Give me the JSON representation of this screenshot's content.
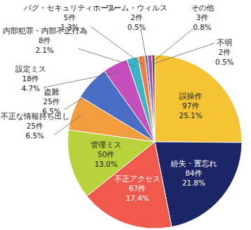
{
  "chart_data": {
    "type": "pie",
    "categories": [
      "誤操作",
      "紛失・置忘れ",
      "不正アクセス",
      "管理ミス",
      "不正な情報持ち出し",
      "盗難",
      "設定ミス",
      "内部犯罪・内部不正行為",
      "バグ・セキュリティホール",
      "ワーム・ウィルス",
      "その他",
      "不明"
    ],
    "values": [
      97,
      84,
      67,
      50,
      25,
      25,
      18,
      8,
      5,
      2,
      3,
      2
    ],
    "value_labels": [
      "97件",
      "84件",
      "67件",
      "50件",
      "25件",
      "25件",
      "18件",
      "8件",
      "5件",
      "2件",
      "3件",
      "2件"
    ],
    "percents": [
      25.1,
      21.8,
      17.4,
      13.0,
      6.5,
      6.5,
      4.7,
      2.1,
      1.3,
      0.5,
      0.8,
      0.5
    ],
    "percent_labels": [
      "25.1%",
      "21.8%",
      "17.4%",
      "13.0%",
      "6.5%",
      "6.5%",
      "4.7%",
      "2.1%",
      "1.3%",
      "0.5%",
      "0.8%",
      "0.5%"
    ],
    "colors": [
      "#f4c233",
      "#1c2565",
      "#ef5a4c",
      "#b8d23c",
      "#f29c40",
      "#4a6ec6",
      "#c54fbd",
      "#3bb5c6",
      "#ea7e3f",
      "#6b6dc6",
      "#a44ca8",
      "#7a3a3a"
    ],
    "data_labels": true
  }
}
